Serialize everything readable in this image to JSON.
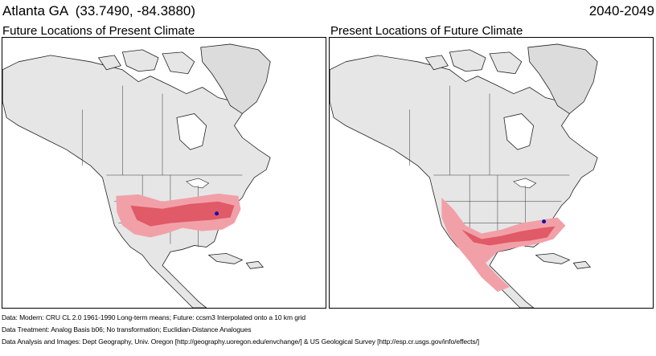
{
  "header": {
    "location": "Atlanta GA  (33.7490, -84.3880)",
    "period": "2040-2049"
  },
  "panels": [
    {
      "title": "Future Locations of Present Climate"
    },
    {
      "title": "Present Locations of Future Climate"
    }
  ],
  "footer": {
    "line1": "Data:  Modern: CRU CL 2.0 1961-1990 Long-term means; Future: ccsm3 Interpolated onto a 10 km grid",
    "line2": "Data Treatment:  Analog Basis b06; No transformation; Euclidian-Distance Analogues",
    "line3": "Data Analysis and Images:  Dept Geography, Univ. Oregon [http://geography.uoregon.edu/envchange/] & US Geological Survey [http://esp.cr.usgs.gov/info/effects/]"
  },
  "colors": {
    "land": "#e8e8e8",
    "ocean": "#ffffff",
    "analog_light": "#f2a0a8",
    "analog_dark": "#e05a68",
    "location_marker": "#1010b0"
  }
}
